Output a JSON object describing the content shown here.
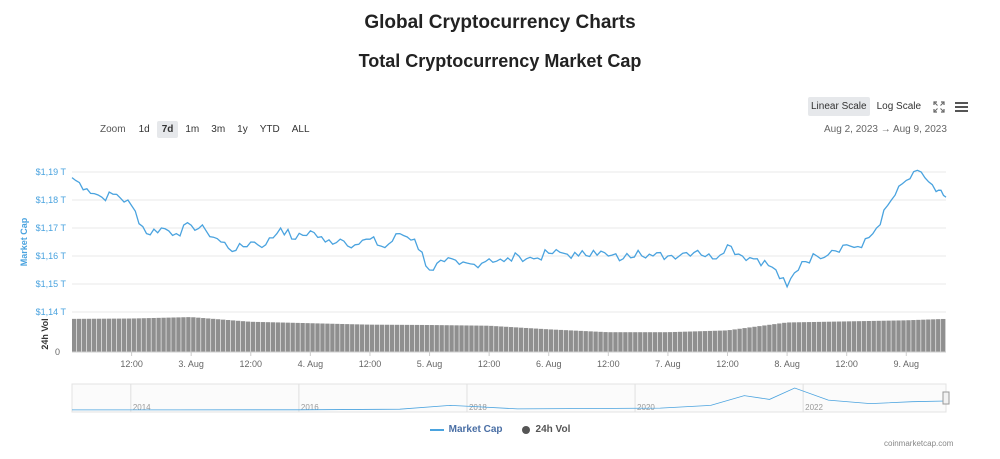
{
  "page_title": "Global Cryptocurrency Charts",
  "chart_title": "Total Cryptocurrency Market Cap",
  "scale": {
    "linear_label": "Linear Scale",
    "log_label": "Log Scale",
    "active": "linear"
  },
  "zoom": {
    "label": "Zoom",
    "options": [
      "1d",
      "7d",
      "1m",
      "3m",
      "1y",
      "YTD",
      "ALL"
    ],
    "active": "7d"
  },
  "date_range": {
    "from": "Aug 2, 2023",
    "arrow": "→",
    "to": "Aug 9, 2023"
  },
  "colors": {
    "market_cap": "#4aa3df",
    "volume": "#8f8f8f",
    "accent": "#4a6fa5"
  },
  "icons": {
    "fullscreen": "fullscreen-icon",
    "menu": "hamburger-menu-icon",
    "legend_line": "line-icon",
    "legend_dot": "dot-icon"
  },
  "legend": {
    "market_cap": "Market Cap",
    "volume": "24h Vol"
  },
  "credit": "coinmarketcap.com",
  "chart_data": {
    "type": "line",
    "y_axis": {
      "label": "Market Cap",
      "ticks": [
        "$1,19 T",
        "$1,18 T",
        "$1,17 T",
        "$1,16 T",
        "$1,15 T",
        "$1,14 T"
      ],
      "tick_values": [
        1.19,
        1.18,
        1.17,
        1.16,
        1.15,
        1.14
      ],
      "range": [
        1.14,
        1.19
      ]
    },
    "volume_axis": {
      "label": "24h Vol",
      "ticks": [
        "0"
      ]
    },
    "x_axis": {
      "ticks": [
        "12:00",
        "3. Aug",
        "12:00",
        "4. Aug",
        "12:00",
        "5. Aug",
        "12:00",
        "6. Aug",
        "12:00",
        "7. Aug",
        "12:00",
        "8. Aug",
        "12:00",
        "9. Aug"
      ],
      "tick_hours": [
        12,
        24,
        36,
        48,
        60,
        72,
        84,
        96,
        108,
        120,
        132,
        144,
        156,
        168
      ],
      "range_hours": [
        0,
        176
      ]
    },
    "series": [
      {
        "name": "Market Cap",
        "x_hours": [
          0,
          3,
          6,
          9,
          12,
          15,
          18,
          21,
          24,
          27,
          30,
          33,
          36,
          39,
          42,
          45,
          48,
          51,
          54,
          57,
          60,
          63,
          66,
          69,
          72,
          75,
          78,
          81,
          84,
          87,
          90,
          93,
          96,
          99,
          102,
          105,
          108,
          111,
          114,
          117,
          120,
          123,
          126,
          129,
          132,
          135,
          138,
          141,
          144,
          147,
          150,
          153,
          156,
          159,
          162,
          165,
          168,
          171,
          174,
          176
        ],
        "values": [
          1.188,
          1.184,
          1.181,
          1.182,
          1.178,
          1.168,
          1.17,
          1.168,
          1.171,
          1.169,
          1.165,
          1.162,
          1.165,
          1.164,
          1.17,
          1.166,
          1.169,
          1.165,
          1.166,
          1.164,
          1.166,
          1.163,
          1.168,
          1.166,
          1.155,
          1.158,
          1.157,
          1.157,
          1.159,
          1.158,
          1.16,
          1.159,
          1.161,
          1.161,
          1.16,
          1.162,
          1.16,
          1.159,
          1.162,
          1.16,
          1.16,
          1.161,
          1.162,
          1.159,
          1.164,
          1.16,
          1.159,
          1.156,
          1.149,
          1.158,
          1.16,
          1.162,
          1.164,
          1.163,
          1.17,
          1.18,
          1.187,
          1.19,
          1.183,
          1.181
        ]
      },
      {
        "name": "24h Vol",
        "x_hours": [
          0,
          12,
          24,
          36,
          48,
          60,
          72,
          84,
          96,
          108,
          120,
          132,
          144,
          156,
          168,
          176
        ],
        "values": [
          0.92,
          0.93,
          0.97,
          0.84,
          0.8,
          0.76,
          0.75,
          0.73,
          0.63,
          0.55,
          0.55,
          0.6,
          0.82,
          0.85,
          0.88,
          0.92
        ]
      }
    ],
    "navigator": {
      "year_ticks": [
        "2014",
        "2016",
        "2018",
        "2020",
        "2022"
      ],
      "year_values": [
        2014,
        2016,
        2018,
        2020,
        2022
      ],
      "range_years": [
        2013.3,
        2023.7
      ],
      "points_years": [
        2013.3,
        2014.5,
        2016,
        2017.2,
        2017.8,
        2018.1,
        2018.6,
        2019.5,
        2020.3,
        2020.9,
        2021.3,
        2021.6,
        2021.9,
        2022.3,
        2022.8,
        2023.3,
        2023.7
      ],
      "points_values": [
        0.01,
        0.01,
        0.02,
        0.1,
        0.6,
        0.45,
        0.15,
        0.2,
        0.25,
        0.6,
        1.9,
        1.4,
        2.9,
        1.3,
        0.85,
        1.1,
        1.18
      ]
    }
  }
}
